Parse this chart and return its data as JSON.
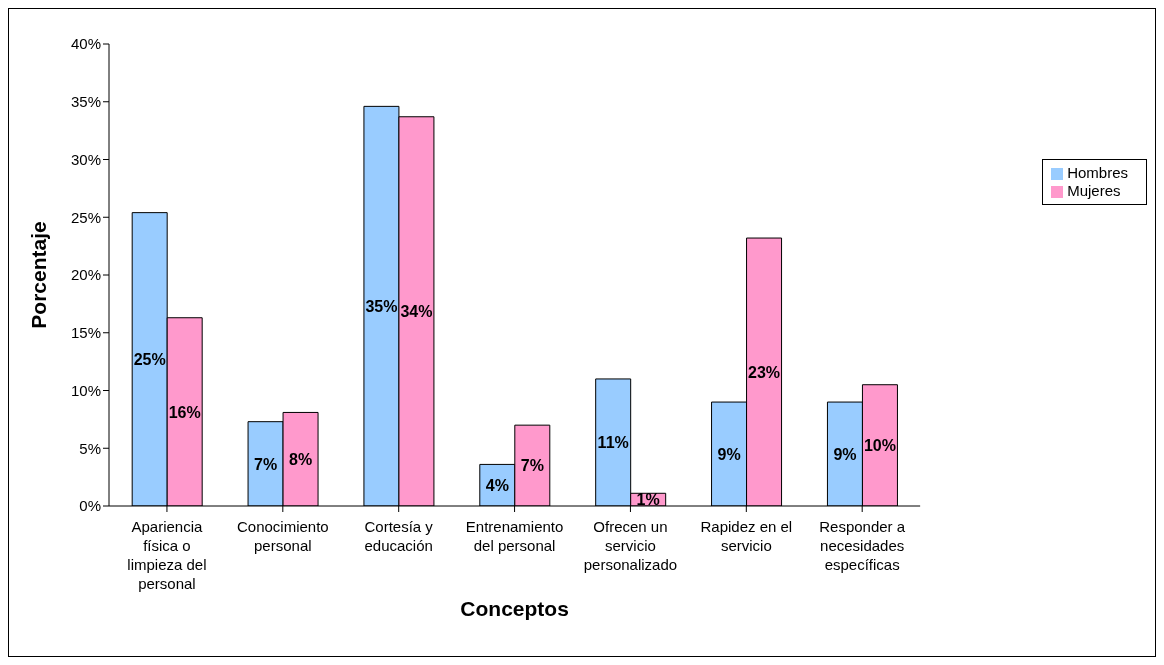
{
  "chart_data": {
    "type": "bar",
    "xlabel": "Conceptos",
    "ylabel": "Porcentaje",
    "categories": [
      "Apariencia física o limpieza del personal",
      "Conocimiento personal",
      "Cortesía y educación",
      "Entrenamiento del personal",
      "Ofrecen un servicio personalizado",
      "Rapidez en el servicio",
      "Responder a necesidades específicas"
    ],
    "series": [
      {
        "name": "Hombres",
        "color": "#99ccff",
        "values": [
          25.4,
          7.3,
          34.6,
          3.6,
          11.0,
          9.0,
          9.0
        ],
        "value_labels": [
          "25%",
          "7%",
          "35%",
          "4%",
          "11%",
          "9%",
          "9%"
        ]
      },
      {
        "name": "Mujeres",
        "color": "#ff99cc",
        "values": [
          16.3,
          8.1,
          33.7,
          7.0,
          1.1,
          23.2,
          10.5
        ],
        "value_labels": [
          "16%",
          "8%",
          "34%",
          "7%",
          "1%",
          "23%",
          "10%"
        ]
      }
    ],
    "ylim": [
      0,
      40
    ],
    "yticks": [
      {
        "value": 0,
        "label": "0%"
      },
      {
        "value": 5,
        "label": "5%"
      },
      {
        "value": 10,
        "label": "10%"
      },
      {
        "value": 15,
        "label": "15%"
      },
      {
        "value": 20,
        "label": "20%"
      },
      {
        "value": 25,
        "label": "25%"
      },
      {
        "value": 30,
        "label": "30%"
      },
      {
        "value": 35,
        "label": "35%"
      },
      {
        "value": 40,
        "label": "40%"
      }
    ],
    "grid": false,
    "legend": "right"
  }
}
